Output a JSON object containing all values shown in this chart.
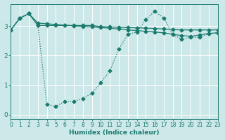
{
  "xlabel": "Humidex (Indice chaleur)",
  "bg_color": "#cde8e8",
  "line_color": "#1a7a6e",
  "xlim": [
    0,
    23
  ],
  "ylim": [
    -0.15,
    3.75
  ],
  "xtick_labels": [
    "0",
    "1",
    "2",
    "3",
    "4",
    "5",
    "6",
    "7",
    "8",
    "9",
    "10",
    "11",
    "12",
    "13",
    "14",
    "15",
    "16",
    "17",
    "18",
    "19",
    "20",
    "21",
    "22",
    "23"
  ],
  "ytick_vals": [
    0,
    1,
    2,
    3
  ],
  "line1_x": [
    0,
    1,
    2,
    3,
    4,
    5,
    6,
    7,
    8,
    9,
    10,
    11,
    12,
    13,
    14,
    15,
    16,
    17,
    18,
    19,
    20,
    21,
    22,
    23
  ],
  "line1_y": [
    2.87,
    3.27,
    3.42,
    3.02,
    0.35,
    0.28,
    0.45,
    0.45,
    0.55,
    0.72,
    1.08,
    1.48,
    2.22,
    2.72,
    2.8,
    3.22,
    3.5,
    3.27,
    2.72,
    2.55,
    2.62,
    2.62,
    2.75,
    2.77
  ],
  "line2_x": [
    0,
    1,
    2,
    3,
    4,
    5,
    6,
    7,
    8,
    9,
    10,
    11,
    12,
    13,
    14,
    15,
    16,
    17,
    18,
    19,
    20,
    21,
    22,
    23
  ],
  "line2_y": [
    2.87,
    3.27,
    3.42,
    3.02,
    3.02,
    3.02,
    3.02,
    3.02,
    3.02,
    3.02,
    2.98,
    2.97,
    2.96,
    2.95,
    2.94,
    2.93,
    2.92,
    2.9,
    2.88,
    2.87,
    2.87,
    2.87,
    2.87,
    2.87
  ],
  "line3_x": [
    0,
    1,
    2,
    3,
    4,
    5,
    6,
    7,
    8,
    9,
    10,
    11,
    12,
    13,
    14,
    15,
    16,
    17,
    18,
    19,
    20,
    21,
    22,
    23
  ],
  "line3_y": [
    2.87,
    3.27,
    3.42,
    3.1,
    3.08,
    3.05,
    3.03,
    3.01,
    2.99,
    2.97,
    2.95,
    2.93,
    2.9,
    2.87,
    2.85,
    2.82,
    2.8,
    2.77,
    2.72,
    2.68,
    2.65,
    2.7,
    2.75,
    2.77
  ],
  "marker": "D",
  "marker_size": 2.5,
  "line_width": 0.9,
  "font_size_tick": 5.5,
  "font_size_xlabel": 6.5
}
